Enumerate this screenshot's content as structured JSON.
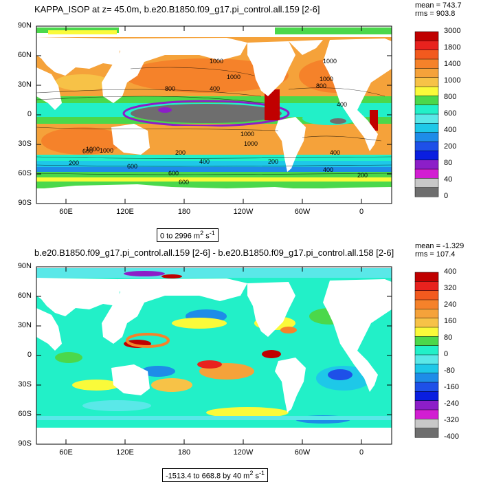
{
  "panels": [
    {
      "title": "KAPPA_ISOP at z=  45.0m, b.e20.B1850.f09_g17.pi_control.all.159 [2-6]",
      "stats": {
        "mean": "mean = 743.7",
        "rms": "rms = 903.8"
      },
      "range_label": "0 to 2996 m",
      "units_sup1": "2",
      "units_mid": " s",
      "units_sup2": "-1",
      "colorbar_labels": [
        "3000",
        "1800",
        "1400",
        "1000",
        "800",
        "600",
        "400",
        "200",
        "80",
        "40",
        "0"
      ],
      "colorbar_colors": [
        "#c00000",
        "#e8221e",
        "#f25a1e",
        "#f5822a",
        "#f5a23a",
        "#f7c247",
        "#fafa3a",
        "#4bd84b",
        "#22f0c8",
        "#5ae8e8",
        "#1ec8e8",
        "#1e8ce8",
        "#1e50e8",
        "#0a1ee0",
        "#8c1ec8",
        "#d21ed2",
        "#c8c8c8",
        "#6e6e6e"
      ],
      "contour_labels": [
        "1000",
        "1000",
        "800",
        "400",
        "1000",
        "1000",
        "800",
        "400",
        "1000",
        "400",
        "200",
        "200",
        "1000",
        "600",
        "200",
        "600",
        "400",
        "600",
        "1000",
        "400",
        "200",
        "600",
        "1000"
      ]
    },
    {
      "title": "b.e20.B1850.f09_g17.pi_control.all.159 [2-6] - b.e20.B1850.f09_g17.pi_control.all.158 [2-6]",
      "stats": {
        "mean": "mean = -1.329",
        "rms": "rms = 107.4"
      },
      "range_label": "-1513.4 to 668.8 by 40 m",
      "units_sup1": "2",
      "units_mid": " s",
      "units_sup2": "-1",
      "colorbar_labels": [
        "400",
        "320",
        "240",
        "160",
        "80",
        "0",
        "-80",
        "-160",
        "-240",
        "-320",
        "-400"
      ],
      "colorbar_colors": [
        "#c00000",
        "#e8221e",
        "#f25a1e",
        "#f5822a",
        "#f5a23a",
        "#f7c247",
        "#fafa3a",
        "#4bd84b",
        "#22f0c8",
        "#5ae8e8",
        "#1ec8e8",
        "#1e8ce8",
        "#1e50e8",
        "#0a1ee0",
        "#8c1ec8",
        "#d21ed2",
        "#c8c8c8",
        "#6e6e6e"
      ]
    }
  ],
  "axes": {
    "y_labels": [
      "90N",
      "60N",
      "30N",
      "0",
      "30S",
      "60S",
      "90S"
    ],
    "x_labels": [
      "60E",
      "120E",
      "180",
      "120W",
      "60W",
      "0"
    ]
  }
}
